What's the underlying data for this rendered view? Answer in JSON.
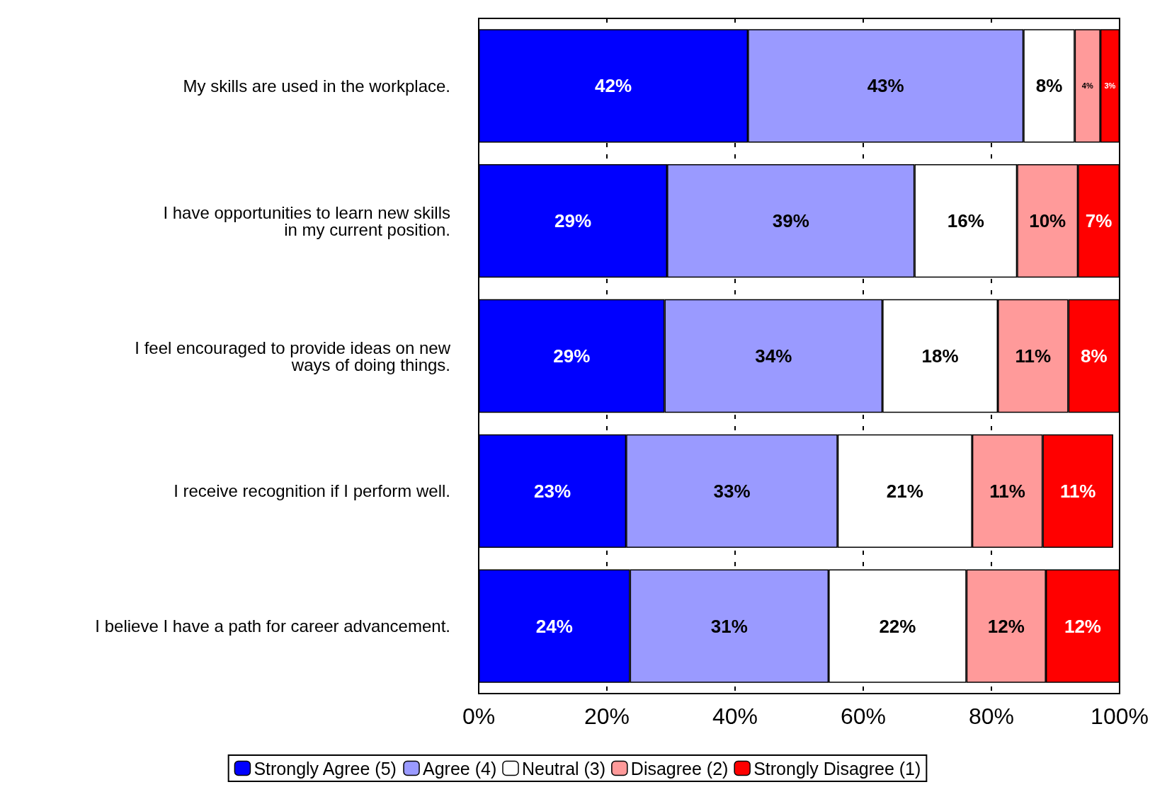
{
  "chart_data": {
    "type": "bar",
    "orientation": "horizontal",
    "stacked": true,
    "grid": "x",
    "legend": "bottom",
    "categories": [
      "My skills are used in the workplace.",
      "I have opportunities to learn new skills\nin my current position.",
      "I feel encouraged to provide ideas on new\nways of doing things.",
      "I receive recognition if I perform well.",
      "I believe I have a path for career advancement."
    ],
    "xlim": [
      0,
      100
    ],
    "xticks": [
      {
        "value": 0,
        "label": "0%"
      },
      {
        "value": 20,
        "label": "20%"
      },
      {
        "value": 40,
        "label": "40%"
      },
      {
        "value": 60,
        "label": "60%"
      },
      {
        "value": 80,
        "label": "80%"
      },
      {
        "value": 100,
        "label": "100%"
      }
    ],
    "series": [
      {
        "name": "Strongly Agree (5)",
        "color": "#0000ff",
        "values": [
          42,
          29.4,
          29,
          23,
          23.6
        ],
        "value_labels": [
          "42%",
          "29%",
          "29%",
          "23%",
          "24%"
        ]
      },
      {
        "name": "Agree (4)",
        "color": "#9a9aff",
        "values": [
          43,
          38.6,
          34,
          33,
          31
        ],
        "value_labels": [
          "43%",
          "39%",
          "34%",
          "33%",
          "31%"
        ]
      },
      {
        "name": "Neutral (3)",
        "color": "#ffffff",
        "values": [
          8,
          16,
          18,
          21,
          21.5
        ],
        "value_labels": [
          "8%",
          "16%",
          "18%",
          "21%",
          "22%"
        ]
      },
      {
        "name": "Disagree (2)",
        "color": "#ff9a9a",
        "values": [
          4,
          9.5,
          11,
          11,
          12.4
        ],
        "value_labels": [
          "4%",
          "10%",
          "11%",
          "11%",
          "12%"
        ]
      },
      {
        "name": "Strongly Disagree (1)",
        "color": "#ff0000",
        "values": [
          3,
          6.5,
          8,
          11,
          11.5
        ],
        "value_labels": [
          "3%",
          "7%",
          "8%",
          "11%",
          "12%"
        ]
      }
    ]
  }
}
